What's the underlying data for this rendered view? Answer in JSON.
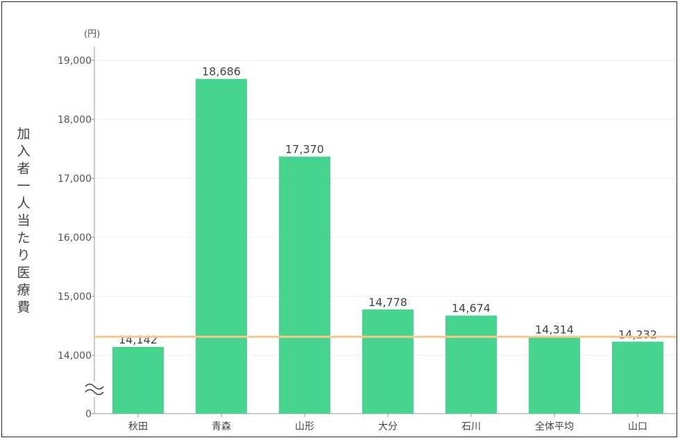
{
  "chart_data": {
    "type": "bar",
    "unit_label": "(円)",
    "ylabel": "加入者一人当たり医療費",
    "categories": [
      "秋田",
      "青森",
      "山形",
      "大分",
      "石川",
      "全体平均",
      "山口"
    ],
    "values": [
      14142,
      18686,
      17370,
      14778,
      14674,
      14314,
      14232
    ],
    "value_labels": [
      "14,142",
      "18,686",
      "17,370",
      "14,778",
      "14,674",
      "14,314",
      "14,232"
    ],
    "yticks": [
      0,
      14000,
      15000,
      16000,
      17000,
      18000,
      19000
    ],
    "ytick_labels": [
      "0",
      "14,000",
      "15,000",
      "16,000",
      "17,000",
      "18,000",
      "19,000"
    ],
    "ylim": [
      14000,
      19000
    ],
    "axis_break": true,
    "reference_line": {
      "value": 14314
    },
    "grid": true,
    "colors": {
      "bar": "#46d48e",
      "reference_line": "#f7c98a",
      "grid": "#eeeeee",
      "axis": "#999999"
    }
  }
}
